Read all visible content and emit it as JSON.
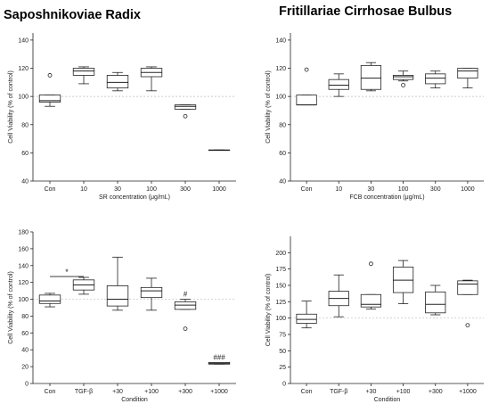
{
  "titles": {
    "left": "Saposhnikoviae Radix",
    "right": "Fritillariae Cirrhosae Bulbus"
  },
  "chart_data": [
    {
      "type": "box",
      "title": "Saposhnikoviae Radix",
      "xlabel": "SR concentration (μg/mL)",
      "ylabel": "Cell Viability (% of control)",
      "ylim": [
        40,
        145
      ],
      "yticks": [
        40,
        60,
        80,
        100,
        120,
        140
      ],
      "reference_line": 100,
      "categories": [
        "Con",
        "10",
        "30",
        "100",
        "300",
        "1000"
      ],
      "boxes": [
        {
          "whislo": 93,
          "q1": 96,
          "med": 97,
          "q3": 101,
          "whishi": 101,
          "fliers": [
            115
          ]
        },
        {
          "whislo": 109,
          "q1": 115,
          "med": 118,
          "q3": 120,
          "whishi": 121,
          "fliers": []
        },
        {
          "whislo": 104,
          "q1": 106,
          "med": 110,
          "q3": 115,
          "whishi": 117,
          "fliers": []
        },
        {
          "whislo": 104,
          "q1": 114,
          "med": 117,
          "q3": 120,
          "whishi": 121,
          "fliers": []
        },
        {
          "whislo": 91,
          "q1": 91,
          "med": 93,
          "q3": 94,
          "whishi": 94,
          "fliers": [
            86
          ]
        },
        {
          "whislo": 62,
          "q1": 62,
          "med": 62,
          "q3": 62,
          "whishi": 62,
          "fliers": []
        }
      ],
      "annotations": []
    },
    {
      "type": "box",
      "title": "Fritillariae Cirrhosae Bulbus",
      "xlabel": "FCB concentration (μg/mL)",
      "ylabel": "Cell Viability (% of control)",
      "ylim": [
        40,
        145
      ],
      "yticks": [
        40,
        60,
        80,
        100,
        120,
        140
      ],
      "reference_line": 100,
      "categories": [
        "Con",
        "10",
        "30",
        "100",
        "300",
        "1000"
      ],
      "boxes": [
        {
          "whislo": 94,
          "q1": 94,
          "med": 94,
          "q3": 101,
          "whishi": 101,
          "fliers": [
            119
          ]
        },
        {
          "whislo": 100,
          "q1": 105,
          "med": 108,
          "q3": 112,
          "whishi": 116,
          "fliers": []
        },
        {
          "whislo": 104,
          "q1": 105,
          "med": 113,
          "q3": 122,
          "whishi": 124,
          "fliers": []
        },
        {
          "whislo": 111,
          "q1": 112,
          "med": 114,
          "q3": 115,
          "whishi": 118,
          "fliers": [
            108
          ]
        },
        {
          "whislo": 106,
          "q1": 109,
          "med": 113,
          "q3": 116,
          "whishi": 118,
          "fliers": []
        },
        {
          "whislo": 106,
          "q1": 113,
          "med": 118,
          "q3": 120,
          "whishi": 120,
          "fliers": []
        }
      ],
      "annotations": []
    },
    {
      "type": "box",
      "xlabel": "Condition",
      "ylabel": "Cell Viability (% of control)",
      "ylim": [
        0,
        180
      ],
      "yticks": [
        0,
        20,
        40,
        60,
        80,
        100,
        120,
        140,
        160,
        180
      ],
      "reference_line": 100,
      "categories": [
        "Con",
        "TGF-β",
        "+30",
        "+100",
        "+300",
        "+1000"
      ],
      "boxes": [
        {
          "whislo": 91,
          "q1": 95,
          "med": 98,
          "q3": 105,
          "whishi": 107,
          "fliers": []
        },
        {
          "whislo": 106,
          "q1": 111,
          "med": 117,
          "q3": 123,
          "whishi": 126,
          "fliers": []
        },
        {
          "whislo": 87,
          "q1": 92,
          "med": 100,
          "q3": 116,
          "whishi": 150,
          "fliers": []
        },
        {
          "whislo": 87,
          "q1": 102,
          "med": 110,
          "q3": 114,
          "whishi": 125,
          "fliers": []
        },
        {
          "whislo": 88,
          "q1": 88,
          "med": 93,
          "q3": 97,
          "whishi": 100,
          "fliers": [
            65
          ]
        },
        {
          "whislo": 23,
          "q1": 23,
          "med": 24,
          "q3": 25,
          "whishi": 25,
          "fliers": []
        }
      ],
      "annotations": [
        {
          "text": "#",
          "category": "+300",
          "y": 103
        },
        {
          "text": "###",
          "category": "+1000",
          "y": 28
        },
        {
          "text": "*",
          "bracket": [
            "Con",
            "TGF-β"
          ],
          "y": 127
        }
      ]
    },
    {
      "type": "box",
      "xlabel": "Condition",
      "ylabel": "Cell Viability (% of control)",
      "ylim": [
        0,
        225
      ],
      "yticks": [
        0,
        25,
        50,
        75,
        100,
        125,
        150,
        175,
        200
      ],
      "reference_line": 100,
      "categories": [
        "Con",
        "TGF-β",
        "+30",
        "+100",
        "+300",
        "+1000"
      ],
      "boxes": [
        {
          "whislo": 85,
          "q1": 92,
          "med": 98,
          "q3": 106,
          "whishi": 126,
          "fliers": []
        },
        {
          "whislo": 102,
          "q1": 119,
          "med": 130,
          "q3": 141,
          "whishi": 166,
          "fliers": []
        },
        {
          "whislo": 114,
          "q1": 117,
          "med": 121,
          "q3": 136,
          "whishi": 136,
          "fliers": [
            183
          ]
        },
        {
          "whislo": 122,
          "q1": 139,
          "med": 158,
          "q3": 178,
          "whishi": 188,
          "fliers": []
        },
        {
          "whislo": 105,
          "q1": 108,
          "med": 121,
          "q3": 140,
          "whishi": 150,
          "fliers": []
        },
        {
          "whislo": 136,
          "q1": 136,
          "med": 152,
          "q3": 157,
          "whishi": 158,
          "fliers": [
            89
          ]
        }
      ],
      "annotations": []
    }
  ]
}
